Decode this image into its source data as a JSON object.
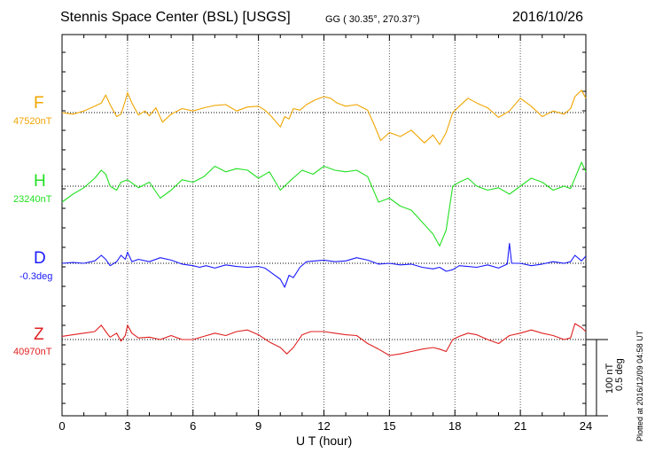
{
  "header": {
    "title": "Stennis Space Center (BSL)  [USGS]",
    "coords": "GG ( 30.35°, 270.37°)",
    "date": "2016/10/26"
  },
  "footer": {
    "plotted_at": "Plotted at 2016/12/09 04:58 UT"
  },
  "scale": {
    "field": "100 nT",
    "angle": "0.5 deg"
  },
  "chart_data": {
    "type": "line",
    "xlabel": "U T (hour)",
    "xlim": [
      0,
      24
    ],
    "xticks": [
      "0",
      "3",
      "6",
      "9",
      "12",
      "15",
      "18",
      "21",
      "24"
    ],
    "grid": true,
    "data_gap_hours": [
      17.7,
      17.9
    ],
    "series": [
      {
        "name": "F",
        "baseline_label": "47520nT",
        "color": "#f0a500",
        "unit": "nT",
        "x": [
          0,
          0.5,
          1,
          1.5,
          1.8,
          2.0,
          2.2,
          2.5,
          2.7,
          2.9,
          3.0,
          3.2,
          3.5,
          3.8,
          4.0,
          4.3,
          4.6,
          5.0,
          5.5,
          6.0,
          6.5,
          7.0,
          7.5,
          8.0,
          8.5,
          9.0,
          9.3,
          9.6,
          10.0,
          10.2,
          10.4,
          10.6,
          10.9,
          11.2,
          11.6,
          12.0,
          12.3,
          12.6,
          13.0,
          13.5,
          14.0,
          14.3,
          14.6,
          15.0,
          15.5,
          16.0,
          16.3,
          16.6,
          17.0,
          17.3,
          17.6,
          17.9,
          18.2,
          18.6,
          19.0,
          19.5,
          20.0,
          20.5,
          21.0,
          21.5,
          22.0,
          22.5,
          23.0,
          23.3,
          23.5,
          23.8,
          24.0
        ],
        "y": [
          0,
          -2,
          2,
          8,
          12,
          22,
          10,
          -5,
          -2,
          15,
          25,
          12,
          -3,
          2,
          -4,
          6,
          -12,
          -2,
          5,
          2,
          6,
          9,
          10,
          2,
          7,
          8,
          3,
          -5,
          -18,
          -5,
          -8,
          5,
          3,
          10,
          16,
          20,
          18,
          12,
          8,
          10,
          3,
          -15,
          -35,
          -25,
          -30,
          -22,
          -30,
          -38,
          -28,
          -40,
          -25,
          0,
          8,
          18,
          12,
          6,
          -6,
          2,
          18,
          8,
          -5,
          2,
          -2,
          5,
          20,
          28,
          18
        ],
        "baseline_value": 47520
      },
      {
        "name": "H",
        "baseline_label": "23240nT",
        "color": "#22e022",
        "unit": "nT",
        "x": [
          0,
          0.5,
          1,
          1.5,
          1.8,
          2.0,
          2.2,
          2.5,
          2.7,
          3.0,
          3.5,
          4.0,
          4.5,
          5.0,
          5.5,
          6.0,
          6.5,
          7.0,
          7.5,
          8.0,
          8.5,
          9.0,
          9.5,
          10.0,
          10.5,
          11.0,
          11.5,
          12.0,
          12.5,
          13.0,
          13.5,
          14.0,
          14.5,
          15.0,
          15.5,
          16.0,
          16.5,
          17.0,
          17.3,
          17.6,
          17.9,
          18.2,
          18.6,
          19.0,
          19.5,
          20.0,
          20.5,
          21.0,
          21.5,
          22.0,
          22.5,
          23.0,
          23.3,
          23.5,
          23.8,
          24.0
        ],
        "y": [
          -20,
          -10,
          -2,
          10,
          20,
          15,
          0,
          -5,
          5,
          8,
          -2,
          5,
          -15,
          -5,
          8,
          5,
          12,
          25,
          18,
          22,
          20,
          10,
          18,
          -5,
          8,
          20,
          15,
          25,
          20,
          18,
          20,
          12,
          -20,
          -15,
          -25,
          -30,
          -45,
          -60,
          -75,
          -55,
          0,
          5,
          10,
          0,
          -5,
          -2,
          -10,
          0,
          10,
          5,
          -5,
          0,
          -3,
          10,
          30,
          18
        ],
        "baseline_value": 23240
      },
      {
        "name": "D",
        "baseline_label": "-0.3deg",
        "color": "#1a1aff",
        "unit": "deg",
        "x": [
          0,
          0.5,
          1.0,
          1.5,
          1.8,
          2.0,
          2.2,
          2.5,
          2.7,
          2.9,
          3.0,
          3.2,
          3.5,
          4.0,
          4.5,
          5.0,
          5.5,
          6.0,
          6.3,
          6.6,
          7.0,
          7.5,
          8.0,
          8.5,
          9.0,
          9.3,
          9.6,
          10.0,
          10.2,
          10.4,
          10.6,
          10.9,
          11.2,
          11.6,
          12.0,
          12.5,
          13.0,
          13.5,
          14.0,
          14.5,
          15.0,
          15.5,
          16.0,
          16.5,
          17.0,
          17.3,
          17.6,
          17.9,
          18.2,
          18.6,
          19.0,
          19.5,
          20.0,
          20.4,
          20.5,
          20.6,
          21.0,
          21.5,
          22.0,
          22.5,
          23.0,
          23.3,
          23.5,
          23.8,
          24.0
        ],
        "y": [
          0,
          1,
          0,
          3,
          10,
          5,
          -3,
          2,
          10,
          5,
          14,
          2,
          5,
          2,
          7,
          4,
          -1,
          -3,
          -5,
          -3,
          -6,
          -2,
          -4,
          -5,
          -4,
          -6,
          -12,
          -20,
          -30,
          -15,
          -18,
          -5,
          2,
          3,
          4,
          2,
          3,
          7,
          4,
          -1,
          0,
          -2,
          -1,
          -5,
          -7,
          -5,
          -10,
          -8,
          -3,
          -4,
          -5,
          -2,
          -6,
          -1,
          25,
          0,
          0,
          -3,
          -1,
          2,
          0,
          2,
          10,
          3,
          9
        ],
        "baseline_value": -0.3
      },
      {
        "name": "Z",
        "baseline_label": "40970nT",
        "color": "#e02020",
        "unit": "nT",
        "x": [
          0,
          0.5,
          1,
          1.5,
          1.8,
          2.0,
          2.2,
          2.5,
          2.7,
          2.9,
          3.0,
          3.2,
          3.5,
          4.0,
          4.5,
          5.0,
          5.5,
          6.0,
          6.5,
          7.0,
          7.5,
          8.0,
          8.5,
          9.0,
          9.5,
          10.0,
          10.3,
          10.6,
          11.0,
          11.4,
          12.0,
          12.5,
          13.0,
          13.5,
          14.0,
          14.5,
          15.0,
          15.5,
          16.0,
          16.5,
          17.0,
          17.3,
          17.6,
          17.9,
          18.2,
          18.6,
          19.0,
          19.5,
          20.0,
          20.5,
          21.0,
          21.5,
          22.0,
          22.5,
          23.0,
          23.3,
          23.5,
          23.8,
          24.0
        ],
        "y": [
          4,
          6,
          8,
          10,
          18,
          10,
          3,
          8,
          -2,
          5,
          18,
          8,
          2,
          3,
          0,
          5,
          0,
          0,
          4,
          8,
          5,
          10,
          12,
          6,
          -3,
          -10,
          -18,
          -10,
          6,
          10,
          10,
          8,
          6,
          5,
          -5,
          -12,
          -20,
          -18,
          -15,
          -12,
          -10,
          -12,
          -15,
          0,
          4,
          8,
          6,
          0,
          -5,
          5,
          8,
          12,
          8,
          5,
          0,
          2,
          20,
          15,
          10
        ],
        "baseline_value": 40970
      }
    ]
  }
}
